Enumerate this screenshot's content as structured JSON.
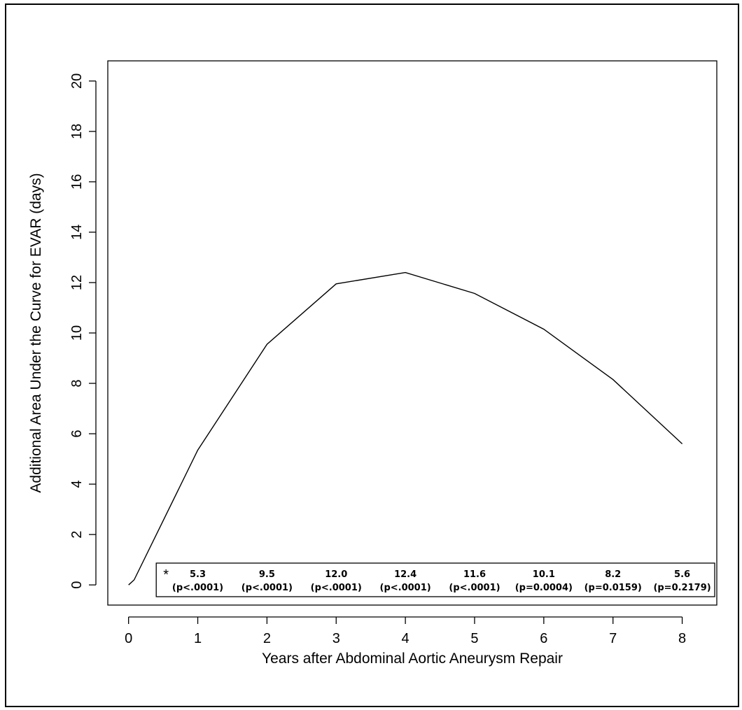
{
  "chart_data": {
    "type": "line",
    "title": "",
    "xlabel": "Years after Abdominal Aortic Aneurysm Repair",
    "ylabel": "Additional Area Under the Curve for EVAR (days)",
    "xlim": [
      -0.3,
      8.5
    ],
    "ylim": [
      -0.8,
      20.8
    ],
    "xticks": [
      0,
      1,
      2,
      3,
      4,
      5,
      6,
      7,
      8
    ],
    "yticks": [
      0,
      2,
      4,
      6,
      8,
      10,
      12,
      14,
      16,
      18,
      20
    ],
    "grid": false,
    "series": [
      {
        "x": [
          0,
          0.08,
          1,
          2,
          3,
          4,
          5,
          6,
          7,
          8
        ],
        "values": [
          0,
          0.2,
          5.35,
          9.55,
          11.95,
          12.4,
          11.57,
          10.15,
          8.15,
          5.6
        ]
      }
    ],
    "annotation_box": {
      "marker": "*",
      "entries": [
        {
          "x": 1,
          "value": "5.3",
          "p": "(p<.0001)"
        },
        {
          "x": 2,
          "value": "9.5",
          "p": "(p<.0001)"
        },
        {
          "x": 3,
          "value": "12.0",
          "p": "(p<.0001)"
        },
        {
          "x": 4,
          "value": "12.4",
          "p": "(p<.0001)"
        },
        {
          "x": 5,
          "value": "11.6",
          "p": "(p<.0001)"
        },
        {
          "x": 6,
          "value": "10.1",
          "p": "(p=0.0004)"
        },
        {
          "x": 7,
          "value": "8.2",
          "p": "(p=0.0159)"
        },
        {
          "x": 8,
          "value": "5.6",
          "p": "(p=0.2179)"
        }
      ]
    }
  }
}
